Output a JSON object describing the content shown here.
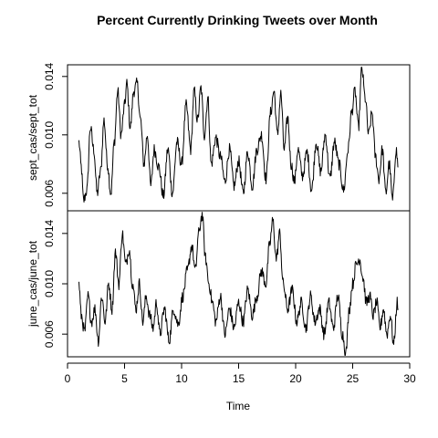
{
  "chart_data": {
    "type": "line",
    "title": "Percent Currently Drinking Tweets over Month",
    "xlabel": "Time",
    "xlim": [
      0,
      30
    ],
    "xticks": [
      0,
      5,
      10,
      15,
      20,
      25,
      30
    ],
    "x_range_data": [
      1,
      29
    ],
    "grid": false,
    "legend": "none",
    "panels": [
      {
        "ylabel": "sept_cas/sept_tot",
        "ylim": [
          0.0048,
          0.0148
        ],
        "yticks": [
          "0.006",
          "0.010",
          "0.014"
        ],
        "ytick_values": [
          0.006,
          0.01,
          0.014
        ],
        "knots": [
          [
            1.0,
            0.0095
          ],
          [
            1.2,
            0.0078
          ],
          [
            1.4,
            0.0055
          ],
          [
            1.7,
            0.0062
          ],
          [
            2.0,
            0.0105
          ],
          [
            2.3,
            0.009
          ],
          [
            2.6,
            0.006
          ],
          [
            2.9,
            0.0075
          ],
          [
            3.2,
            0.011
          ],
          [
            3.5,
            0.008
          ],
          [
            3.8,
            0.006
          ],
          [
            4.1,
            0.0095
          ],
          [
            4.4,
            0.013
          ],
          [
            4.7,
            0.01
          ],
          [
            5.0,
            0.012
          ],
          [
            5.2,
            0.0135
          ],
          [
            5.5,
            0.0105
          ],
          [
            5.8,
            0.013
          ],
          [
            6.1,
            0.0135
          ],
          [
            6.4,
            0.011
          ],
          [
            6.7,
            0.008
          ],
          [
            7.0,
            0.01
          ],
          [
            7.3,
            0.0065
          ],
          [
            7.6,
            0.009
          ],
          [
            8.0,
            0.0078
          ],
          [
            8.4,
            0.0058
          ],
          [
            8.8,
            0.009
          ],
          [
            9.2,
            0.006
          ],
          [
            9.6,
            0.0095
          ],
          [
            10.0,
            0.008
          ],
          [
            10.4,
            0.012
          ],
          [
            10.8,
            0.009
          ],
          [
            11.1,
            0.013
          ],
          [
            11.4,
            0.011
          ],
          [
            11.7,
            0.0132
          ],
          [
            12.0,
            0.01
          ],
          [
            12.3,
            0.0125
          ],
          [
            12.6,
            0.008
          ],
          [
            13.0,
            0.0098
          ],
          [
            13.4,
            0.0085
          ],
          [
            13.8,
            0.0068
          ],
          [
            14.2,
            0.009
          ],
          [
            14.6,
            0.0065
          ],
          [
            15.0,
            0.0082
          ],
          [
            15.4,
            0.006
          ],
          [
            15.8,
            0.0088
          ],
          [
            16.2,
            0.0065
          ],
          [
            16.6,
            0.009
          ],
          [
            17.0,
            0.01
          ],
          [
            17.4,
            0.007
          ],
          [
            17.8,
            0.0115
          ],
          [
            18.1,
            0.013
          ],
          [
            18.4,
            0.01
          ],
          [
            18.7,
            0.0128
          ],
          [
            19.0,
            0.009
          ],
          [
            19.3,
            0.0112
          ],
          [
            19.6,
            0.008
          ],
          [
            19.9,
            0.0068
          ],
          [
            20.2,
            0.009
          ],
          [
            20.6,
            0.0072
          ],
          [
            21.0,
            0.0088
          ],
          [
            21.4,
            0.0062
          ],
          [
            21.8,
            0.0095
          ],
          [
            22.2,
            0.0075
          ],
          [
            22.6,
            0.01
          ],
          [
            23.0,
            0.007
          ],
          [
            23.4,
            0.0095
          ],
          [
            23.8,
            0.008
          ],
          [
            24.2,
            0.0062
          ],
          [
            24.6,
            0.009
          ],
          [
            24.9,
            0.0115
          ],
          [
            25.2,
            0.013
          ],
          [
            25.5,
            0.0105
          ],
          [
            25.8,
            0.0145
          ],
          [
            26.1,
            0.0125
          ],
          [
            26.4,
            0.01
          ],
          [
            26.7,
            0.0115
          ],
          [
            27.0,
            0.0085
          ],
          [
            27.3,
            0.007
          ],
          [
            27.6,
            0.009
          ],
          [
            27.9,
            0.006
          ],
          [
            28.2,
            0.008
          ],
          [
            28.5,
            0.0055
          ],
          [
            28.8,
            0.009
          ],
          [
            29.0,
            0.0078
          ]
        ]
      },
      {
        "ylabel": "june_cas/june_tot",
        "ylim": [
          0.0042,
          0.0158
        ],
        "yticks": [
          "0.006",
          "0.010",
          "0.014"
        ],
        "ytick_values": [
          0.006,
          0.01,
          0.014
        ],
        "knots": [
          [
            1.0,
            0.01
          ],
          [
            1.2,
            0.0075
          ],
          [
            1.5,
            0.0062
          ],
          [
            1.8,
            0.009
          ],
          [
            2.1,
            0.007
          ],
          [
            2.4,
            0.008
          ],
          [
            2.7,
            0.0055
          ],
          [
            3.0,
            0.009
          ],
          [
            3.3,
            0.007
          ],
          [
            3.6,
            0.01
          ],
          [
            3.9,
            0.008
          ],
          [
            4.2,
            0.0125
          ],
          [
            4.5,
            0.01
          ],
          [
            4.8,
            0.014
          ],
          [
            5.1,
            0.0115
          ],
          [
            5.4,
            0.0128
          ],
          [
            5.7,
            0.01
          ],
          [
            6.0,
            0.008
          ],
          [
            6.3,
            0.01
          ],
          [
            6.6,
            0.007
          ],
          [
            6.9,
            0.009
          ],
          [
            7.2,
            0.0075
          ],
          [
            7.5,
            0.0065
          ],
          [
            7.8,
            0.0085
          ],
          [
            8.1,
            0.006
          ],
          [
            8.5,
            0.008
          ],
          [
            8.9,
            0.0055
          ],
          [
            9.3,
            0.008
          ],
          [
            9.7,
            0.0068
          ],
          [
            10.1,
            0.009
          ],
          [
            10.5,
            0.011
          ],
          [
            10.9,
            0.013
          ],
          [
            11.2,
            0.011
          ],
          [
            11.5,
            0.014
          ],
          [
            11.8,
            0.0155
          ],
          [
            12.1,
            0.012
          ],
          [
            12.4,
            0.01
          ],
          [
            12.7,
            0.0085
          ],
          [
            13.0,
            0.007
          ],
          [
            13.4,
            0.009
          ],
          [
            13.8,
            0.006
          ],
          [
            14.2,
            0.008
          ],
          [
            14.6,
            0.0065
          ],
          [
            15.0,
            0.0085
          ],
          [
            15.4,
            0.007
          ],
          [
            15.8,
            0.0095
          ],
          [
            16.2,
            0.0075
          ],
          [
            16.6,
            0.009
          ],
          [
            17.0,
            0.011
          ],
          [
            17.4,
            0.01
          ],
          [
            17.7,
            0.013
          ],
          [
            18.0,
            0.015
          ],
          [
            18.3,
            0.012
          ],
          [
            18.6,
            0.014
          ],
          [
            18.9,
            0.01
          ],
          [
            19.3,
            0.008
          ],
          [
            19.7,
            0.0095
          ],
          [
            20.1,
            0.007
          ],
          [
            20.5,
            0.0085
          ],
          [
            20.9,
            0.0065
          ],
          [
            21.3,
            0.009
          ],
          [
            21.7,
            0.007
          ],
          [
            22.1,
            0.008
          ],
          [
            22.5,
            0.006
          ],
          [
            22.9,
            0.0085
          ],
          [
            23.3,
            0.0065
          ],
          [
            23.7,
            0.009
          ],
          [
            24.1,
            0.006
          ],
          [
            24.4,
            0.0045
          ],
          [
            24.7,
            0.008
          ],
          [
            25.0,
            0.01
          ],
          [
            25.3,
            0.0115
          ],
          [
            25.6,
            0.012
          ],
          [
            25.9,
            0.0105
          ],
          [
            26.2,
            0.0085
          ],
          [
            26.5,
            0.009
          ],
          [
            26.8,
            0.0075
          ],
          [
            27.1,
            0.0085
          ],
          [
            27.4,
            0.0065
          ],
          [
            27.7,
            0.008
          ],
          [
            28.0,
            0.006
          ],
          [
            28.3,
            0.0075
          ],
          [
            28.6,
            0.0052
          ],
          [
            28.9,
            0.0085
          ],
          [
            29.0,
            0.008
          ]
        ]
      }
    ]
  }
}
